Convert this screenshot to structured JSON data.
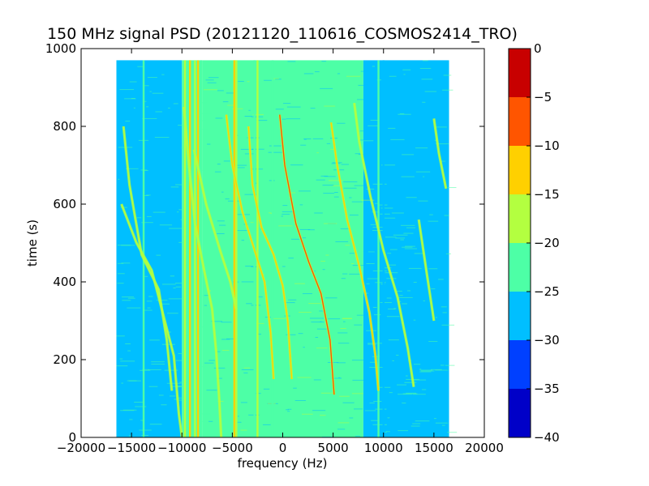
{
  "chart_data": {
    "type": "heatmap",
    "title": "150 MHz signal PSD (20121120_110616_COSMOS2414_TRO)",
    "xlabel": "frequency (Hz)",
    "ylabel": "time (s)",
    "xlim": [
      -20000,
      20000
    ],
    "ylim": [
      0,
      1000
    ],
    "x_ticks": [
      -20000,
      -15000,
      -10000,
      -5000,
      0,
      5000,
      10000,
      15000,
      20000
    ],
    "y_ticks": [
      0,
      200,
      400,
      600,
      800,
      1000
    ],
    "data_extent": {
      "x": [
        -16500,
        16500
      ],
      "y": [
        0,
        970
      ]
    },
    "colorbar": {
      "range": [
        -40,
        0
      ],
      "ticks": [
        0,
        -5,
        -10,
        -15,
        -20,
        -25,
        -30,
        -35,
        -40
      ],
      "levels": [
        {
          "from": -40,
          "to": -35,
          "color": "#0000c8"
        },
        {
          "from": -35,
          "to": -30,
          "color": "#0040ff"
        },
        {
          "from": -30,
          "to": -25,
          "color": "#00bfff"
        },
        {
          "from": -25,
          "to": -20,
          "color": "#4dffa6"
        },
        {
          "from": -20,
          "to": -15,
          "color": "#b3ff40"
        },
        {
          "from": -15,
          "to": -10,
          "color": "#ffd000"
        },
        {
          "from": -10,
          "to": -5,
          "color": "#ff5500"
        },
        {
          "from": -5,
          "to": 0,
          "color": "#c80000"
        }
      ]
    },
    "background_regions": [
      {
        "x": [
          -16500,
          -10000
        ],
        "level": -27.5
      },
      {
        "x": [
          -10000,
          -8000
        ],
        "level": -22.5
      },
      {
        "x": [
          -8000,
          8000
        ],
        "level": -22.5
      },
      {
        "x": [
          8000,
          10000
        ],
        "level": -27.5
      },
      {
        "x": [
          10000,
          16500
        ],
        "level": -27.5
      }
    ],
    "vertical_lines": [
      {
        "x": -13800,
        "level": -22.5
      },
      {
        "x": -9700,
        "level": -17.5
      },
      {
        "x": -9200,
        "level": -12.5
      },
      {
        "x": -8700,
        "level": -17.5
      },
      {
        "x": -8400,
        "level": -12.5
      },
      {
        "x": -8100,
        "level": -22.5
      },
      {
        "x": -4800,
        "level": -12.5
      },
      {
        "x": -4600,
        "level": -17.5
      },
      {
        "x": -2800,
        "level": -22.5
      },
      {
        "x": -2500,
        "level": -17.5
      },
      {
        "x": -1000,
        "level": -22.5
      },
      {
        "x": 9500,
        "level": -22.5
      },
      {
        "x": 10000,
        "level": -27.5
      }
    ],
    "series": [
      {
        "level": -17.5,
        "points": [
          [
            -16000,
            600
          ],
          [
            -14500,
            500
          ],
          [
            -13000,
            430
          ],
          [
            -11700,
            300
          ],
          [
            -10800,
            210
          ],
          [
            -10300,
            60
          ],
          [
            -10000,
            0
          ]
        ]
      },
      {
        "level": -17.5,
        "points": [
          [
            -15800,
            800
          ],
          [
            -15200,
            650
          ],
          [
            -14000,
            470
          ],
          [
            -12300,
            380
          ],
          [
            -11500,
            250
          ],
          [
            -11000,
            120
          ]
        ]
      },
      {
        "level": -17.5,
        "points": [
          [
            -9800,
            850
          ],
          [
            -9300,
            700
          ],
          [
            -8700,
            550
          ],
          [
            -7800,
            430
          ],
          [
            -7000,
            330
          ],
          [
            -6600,
            220
          ],
          [
            -6300,
            100
          ],
          [
            -6100,
            0
          ]
        ]
      },
      {
        "level": -17.5,
        "points": [
          [
            -8800,
            740
          ],
          [
            -7600,
            600
          ],
          [
            -6200,
            480
          ],
          [
            -5200,
            400
          ],
          [
            -4600,
            330
          ]
        ]
      },
      {
        "level": -12.5,
        "points": [
          [
            -5600,
            830
          ],
          [
            -5000,
            700
          ],
          [
            -4000,
            580
          ],
          [
            -2900,
            490
          ],
          [
            -1800,
            400
          ],
          [
            -1200,
            270
          ],
          [
            -900,
            150
          ]
        ]
      },
      {
        "level": -12.5,
        "points": [
          [
            -3400,
            800
          ],
          [
            -3000,
            650
          ],
          [
            -2100,
            540
          ],
          [
            -900,
            470
          ],
          [
            0,
            390
          ],
          [
            500,
            300
          ],
          [
            900,
            150
          ]
        ]
      },
      {
        "level": -7.5,
        "points": [
          [
            -300,
            830
          ],
          [
            200,
            700
          ],
          [
            1300,
            550
          ],
          [
            2600,
            450
          ],
          [
            3800,
            370
          ],
          [
            4700,
            250
          ],
          [
            5100,
            110
          ]
        ]
      },
      {
        "level": -12.5,
        "points": [
          [
            4800,
            810
          ],
          [
            5400,
            700
          ],
          [
            6400,
            560
          ],
          [
            7600,
            440
          ],
          [
            8600,
            320
          ],
          [
            9200,
            210
          ],
          [
            9500,
            120
          ]
        ]
      },
      {
        "level": -17.5,
        "points": [
          [
            7100,
            860
          ],
          [
            7600,
            760
          ],
          [
            8700,
            620
          ],
          [
            10000,
            480
          ],
          [
            11400,
            360
          ],
          [
            12400,
            230
          ],
          [
            13000,
            130
          ]
        ]
      },
      {
        "level": -17.5,
        "points": [
          [
            15000,
            820
          ],
          [
            15500,
            730
          ],
          [
            16200,
            640
          ]
        ]
      },
      {
        "level": -17.5,
        "points": [
          [
            13500,
            560
          ],
          [
            14300,
            420
          ],
          [
            15000,
            300
          ]
        ]
      }
    ]
  }
}
